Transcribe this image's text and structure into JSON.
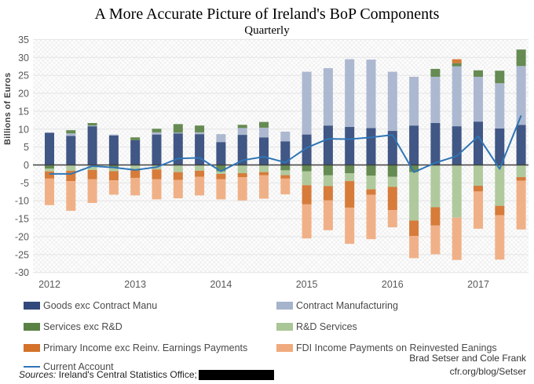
{
  "title": "A More Accurate Picture of Ireland's BoP Components",
  "subtitle": "Quarterly",
  "y_axis_label": "Billions of Euros",
  "credits": {
    "line1": "Brad Setser and Cole Frank",
    "line2": "cfr.org/blog/Setser"
  },
  "source": {
    "prefix": "Sources:",
    "text": " Ireland's Central Statistics Office;"
  },
  "colors": {
    "goods": "#31497b",
    "contract_manufacturing": "#a6b3cd",
    "services": "#598144",
    "rd_services": "#a9c696",
    "primary_income": "#d4712a",
    "fdi_income": "#f0aa7e",
    "current_account": "#2e75b6",
    "gridline": "#e4e4e4",
    "zero_line": "#404040",
    "tick_text": "#595959"
  },
  "legend": {
    "items": [
      {
        "label": "Goods exc Contract Manu",
        "key": "goods",
        "type": "box",
        "col": 0,
        "row": 0
      },
      {
        "label": "Contract Manufacturing",
        "key": "contract_manufacturing",
        "type": "box",
        "col": 1,
        "row": 0
      },
      {
        "label": "Services exc R&D",
        "key": "services",
        "type": "box",
        "col": 0,
        "row": 1
      },
      {
        "label": "R&D Services",
        "key": "rd_services",
        "type": "box",
        "col": 1,
        "row": 1
      },
      {
        "label": "Primary Income exc Reinv. Earnings Payments",
        "key": "primary_income",
        "type": "box",
        "col": 0,
        "row": 2
      },
      {
        "label": "FDI Income Payments on Reinvested Eanings",
        "key": "fdi_income",
        "type": "box",
        "col": 1,
        "row": 2
      },
      {
        "label": "Current Account",
        "key": "current_account",
        "type": "line",
        "col": 0,
        "row": 3
      }
    ]
  },
  "chart_data": {
    "type": "bar",
    "subtype": "stacked bars with line overlay",
    "title": "A More Accurate Picture of Ireland's BoP Components",
    "subtitle": "Quarterly",
    "xlabel": "",
    "ylabel": "Billions of Euros",
    "ylim": [
      -30,
      35
    ],
    "grid": true,
    "legend_position": "bottom",
    "y_ticks": [
      35,
      30,
      25,
      20,
      15,
      10,
      5,
      0,
      -5,
      -10,
      -15,
      -20,
      -25,
      -30
    ],
    "x_year_labels": [
      "2012",
      "2013",
      "2014",
      "2015",
      "2016",
      "2017"
    ],
    "x": [
      "2012-Q1",
      "2012-Q2",
      "2012-Q3",
      "2012-Q4",
      "2013-Q1",
      "2013-Q2",
      "2013-Q3",
      "2013-Q4",
      "2014-Q1",
      "2014-Q2",
      "2014-Q3",
      "2014-Q4",
      "2015-Q1",
      "2015-Q2",
      "2015-Q3",
      "2015-Q4",
      "2016-Q1",
      "2016-Q2",
      "2016-Q3",
      "2016-Q4",
      "2017-Q1",
      "2017-Q2",
      "2017-Q3"
    ],
    "series": [
      {
        "name": "Goods exc Contract Manu",
        "type": "bar",
        "color_key": "goods",
        "values": [
          9.0,
          8.1,
          10.8,
          8.2,
          6.9,
          8.5,
          8.8,
          8.6,
          6.4,
          8.4,
          7.7,
          6.6,
          8.5,
          11.0,
          10.6,
          10.3,
          9.5,
          11.0,
          11.7,
          10.8,
          12.1,
          10.2,
          11.2
        ]
      },
      {
        "name": "Contract Manufacturing",
        "type": "bar",
        "color_key": "contract_manufacturing",
        "values": [
          0,
          0.7,
          0.2,
          0.3,
          0,
          0.6,
          0.2,
          0.5,
          2.2,
          1.9,
          2.7,
          2.7,
          17.5,
          16.0,
          18.9,
          19.1,
          16.5,
          13.6,
          12.9,
          16.7,
          12.5,
          12.6,
          16.4
        ]
      },
      {
        "name": "Services exc R&D",
        "type": "bar",
        "color_key": "services",
        "values": [
          -1.0,
          0.9,
          0.7,
          -0.9,
          0.8,
          1.0,
          2.4,
          1.9,
          -1.75,
          0.9,
          1.6,
          -1.5,
          -1.75,
          -2.9,
          -2.3,
          -3.0,
          -3.3,
          -2.0,
          2.2,
          0.9,
          1.8,
          3.5,
          4.6
        ]
      },
      {
        "name": "R&D Services",
        "type": "bar",
        "color_key": "rd_services",
        "values": [
          -0.8,
          -1.6,
          -1.4,
          -0.85,
          -1.4,
          -1.25,
          -2.0,
          -1.6,
          -0.75,
          -2.3,
          -2.0,
          -1.35,
          -3.9,
          -3.0,
          -2.2,
          -3.8,
          -2.8,
          -13.5,
          -11.8,
          -14.7,
          -5.8,
          -11.4,
          -3.4
        ]
      },
      {
        "name": "Primary Income exc Reinv. Earnings Payments",
        "type": "bar",
        "color_key": "primary_income",
        "values": [
          -2.0,
          -2.9,
          -2.6,
          -2.55,
          -2.2,
          -2.75,
          -2.2,
          -1.7,
          -1.5,
          -1.1,
          -0.9,
          -0.95,
          -5.35,
          -4.0,
          -7.4,
          -1.5,
          -6.5,
          -4.3,
          -5.1,
          1.1,
          -1.6,
          -2.6,
          -1.0
        ]
      },
      {
        "name": "FDI Income Payments on Reinvested Eanings",
        "type": "bar",
        "color_key": "fdi_income",
        "values": [
          -7.4,
          -8.3,
          -6.6,
          -4.0,
          -4.9,
          -5.6,
          -5.1,
          -5.2,
          -5.6,
          -6.5,
          -6.5,
          -4.4,
          -9.5,
          -8.3,
          -10.1,
          -12.4,
          -4.8,
          -6.2,
          -8.0,
          -11.8,
          -10.4,
          -12.4,
          -13.6
        ]
      },
      {
        "name": "Current Account",
        "type": "line",
        "color_key": "current_account",
        "values": [
          -2.5,
          -2.5,
          -0.3,
          -0.7,
          -1.4,
          -0.6,
          1.8,
          2.0,
          -1.75,
          1.3,
          2.3,
          0.7,
          4.8,
          7.3,
          7.2,
          7.7,
          8.4,
          -2.0,
          0.6,
          2.5,
          8.0,
          -1.1,
          13.8
        ]
      }
    ]
  }
}
